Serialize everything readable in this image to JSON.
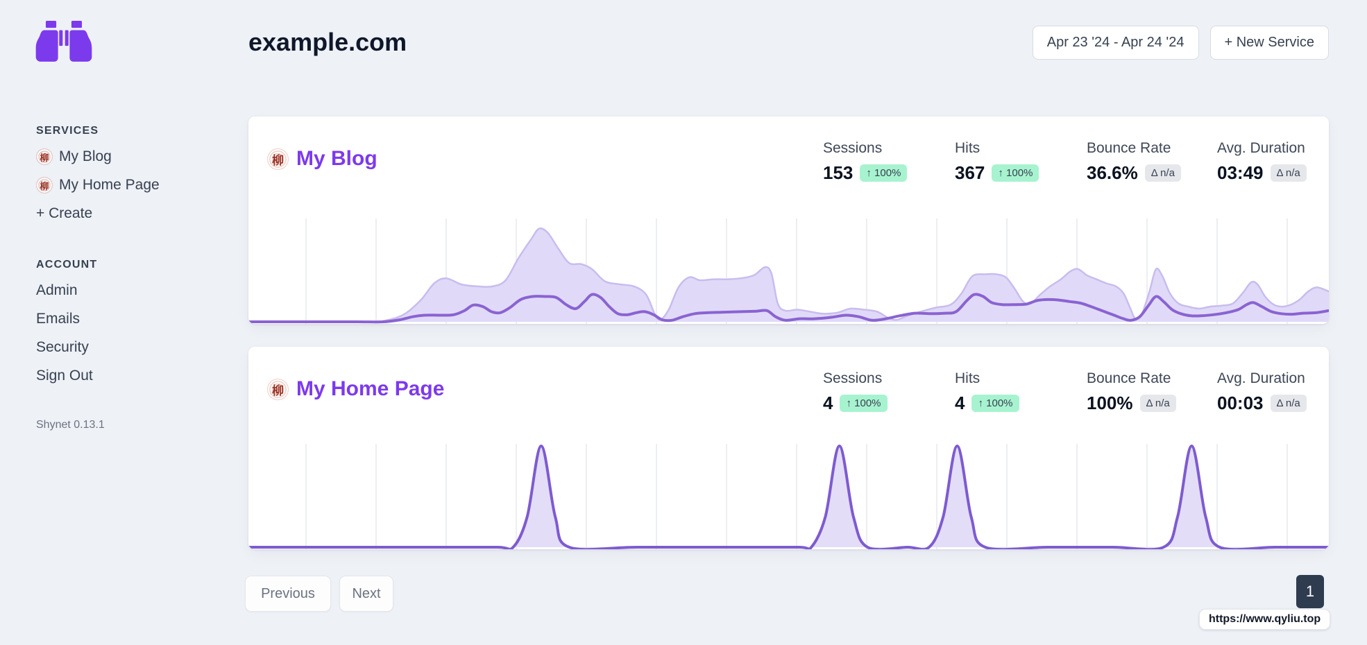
{
  "header": {
    "title": "example.com",
    "date_range_label": "Apr 23 '24 - Apr 24 '24",
    "new_service_label": "+ New Service"
  },
  "sidebar": {
    "services_heading": "SERVICES",
    "services": [
      {
        "label": "My Blog",
        "favicon_glyph": "柳"
      },
      {
        "label": "My Home Page",
        "favicon_glyph": "柳"
      }
    ],
    "create_label": "+ Create",
    "account_heading": "ACCOUNT",
    "account": [
      {
        "label": "Admin"
      },
      {
        "label": "Emails"
      },
      {
        "label": "Security"
      },
      {
        "label": "Sign Out"
      }
    ],
    "version": "Shynet 0.13.1"
  },
  "cards": [
    {
      "title": "My Blog",
      "favicon_glyph": "柳",
      "stats": [
        {
          "label": "Sessions",
          "value": "153",
          "badge": "↑ 100%",
          "badge_type": "green"
        },
        {
          "label": "Hits",
          "value": "367",
          "badge": "↑ 100%",
          "badge_type": "green"
        },
        {
          "label": "Bounce Rate",
          "value": "36.6%",
          "badge": "Δ n/a",
          "badge_type": "gray"
        },
        {
          "label": "Avg. Duration",
          "value": "03:49",
          "badge": "Δ n/a",
          "badge_type": "gray"
        }
      ]
    },
    {
      "title": "My Home Page",
      "favicon_glyph": "柳",
      "stats": [
        {
          "label": "Sessions",
          "value": "4",
          "badge": "↑ 100%",
          "badge_type": "green"
        },
        {
          "label": "Hits",
          "value": "4",
          "badge": "↑ 100%",
          "badge_type": "green"
        },
        {
          "label": "Bounce Rate",
          "value": "100%",
          "badge": "Δ n/a",
          "badge_type": "gray"
        },
        {
          "label": "Avg. Duration",
          "value": "00:03",
          "badge": "Δ n/a",
          "badge_type": "gray"
        }
      ]
    }
  ],
  "pagination": {
    "previous_label": "Previous",
    "next_label": "Next",
    "current_page": "1"
  },
  "status_bar": {
    "link_preview": "https://www.qyliu.top"
  },
  "colors": {
    "accent_purple": "#7c3aed",
    "line_purple": "#8a63d2",
    "area_fill": "#e0daf8",
    "area_stroke": "#c9bcee",
    "spike_fill": "#e3ddf8",
    "badge_green_bg": "#a7f3d0",
    "badge_gray_bg": "#e5e7eb",
    "page_bg": "#eef1f6",
    "page_number_bg": "#2f3b4f",
    "grid_line": "#e7e9ee"
  },
  "chart_data": [
    {
      "type": "area",
      "title": "My Blog traffic over Apr 23 '24 - Apr 24 '24",
      "x_axis": "time (no tick labels shown)",
      "y_axis": "unlabeled (values are height fractions 0-1 of plot area)",
      "gridlines": {
        "orientation": "vertical",
        "count": 15,
        "color": "#e7e9ee"
      },
      "legend": "none",
      "series": [
        {
          "name": "Hits",
          "total": 367,
          "stroke": "#c9bcee",
          "fill": "#e0daf8",
          "width": 2.5,
          "points": [
            [
              0,
              0
            ],
            [
              0.04,
              0
            ],
            [
              0.08,
              0
            ],
            [
              0.115,
              0
            ],
            [
              0.13,
              0.02
            ],
            [
              0.145,
              0.08
            ],
            [
              0.16,
              0.22
            ],
            [
              0.172,
              0.38
            ],
            [
              0.183,
              0.43
            ],
            [
              0.197,
              0.37
            ],
            [
              0.212,
              0.35
            ],
            [
              0.226,
              0.35
            ],
            [
              0.238,
              0.41
            ],
            [
              0.25,
              0.63
            ],
            [
              0.262,
              0.82
            ],
            [
              0.269,
              0.92
            ],
            [
              0.277,
              0.88
            ],
            [
              0.287,
              0.72
            ],
            [
              0.297,
              0.58
            ],
            [
              0.308,
              0.57
            ],
            [
              0.318,
              0.52
            ],
            [
              0.33,
              0.4
            ],
            [
              0.344,
              0.37
            ],
            [
              0.357,
              0.35
            ],
            [
              0.368,
              0.27
            ],
            [
              0.376,
              0.08
            ],
            [
              0.381,
              0.02
            ],
            [
              0.389,
              0.12
            ],
            [
              0.398,
              0.34
            ],
            [
              0.408,
              0.44
            ],
            [
              0.418,
              0.41
            ],
            [
              0.43,
              0.42
            ],
            [
              0.443,
              0.42
            ],
            [
              0.456,
              0.43
            ],
            [
              0.468,
              0.46
            ],
            [
              0.478,
              0.54
            ],
            [
              0.484,
              0.48
            ],
            [
              0.49,
              0.18
            ],
            [
              0.497,
              0.11
            ],
            [
              0.508,
              0.12
            ],
            [
              0.52,
              0.1
            ],
            [
              0.532,
              0.08
            ],
            [
              0.545,
              0.09
            ],
            [
              0.557,
              0.13
            ],
            [
              0.57,
              0.12
            ],
            [
              0.582,
              0.1
            ],
            [
              0.592,
              0.04
            ],
            [
              0.6,
              0.02
            ],
            [
              0.61,
              0.06
            ],
            [
              0.622,
              0.1
            ],
            [
              0.636,
              0.14
            ],
            [
              0.65,
              0.17
            ],
            [
              0.66,
              0.28
            ],
            [
              0.67,
              0.45
            ],
            [
              0.682,
              0.47
            ],
            [
              0.692,
              0.47
            ],
            [
              0.701,
              0.44
            ],
            [
              0.709,
              0.33
            ],
            [
              0.717,
              0.2
            ],
            [
              0.724,
              0.18
            ],
            [
              0.733,
              0.27
            ],
            [
              0.742,
              0.35
            ],
            [
              0.752,
              0.42
            ],
            [
              0.761,
              0.5
            ],
            [
              0.768,
              0.52
            ],
            [
              0.776,
              0.46
            ],
            [
              0.785,
              0.42
            ],
            [
              0.794,
              0.38
            ],
            [
              0.803,
              0.35
            ],
            [
              0.81,
              0.28
            ],
            [
              0.816,
              0.14
            ],
            [
              0.821,
              0.03
            ],
            [
              0.827,
              0.08
            ],
            [
              0.834,
              0.3
            ],
            [
              0.84,
              0.52
            ],
            [
              0.846,
              0.45
            ],
            [
              0.853,
              0.28
            ],
            [
              0.861,
              0.18
            ],
            [
              0.87,
              0.15
            ],
            [
              0.88,
              0.13
            ],
            [
              0.89,
              0.15
            ],
            [
              0.901,
              0.16
            ],
            [
              0.911,
              0.18
            ],
            [
              0.92,
              0.28
            ],
            [
              0.928,
              0.39
            ],
            [
              0.934,
              0.37
            ],
            [
              0.941,
              0.25
            ],
            [
              0.949,
              0.17
            ],
            [
              0.957,
              0.15
            ],
            [
              0.965,
              0.17
            ],
            [
              0.973,
              0.22
            ],
            [
              0.981,
              0.3
            ],
            [
              0.989,
              0.34
            ],
            [
              1,
              0.3
            ]
          ]
        },
        {
          "name": "Sessions",
          "total": 153,
          "stroke": "#8a63d2",
          "fill": null,
          "width": 4,
          "points": [
            [
              0,
              0
            ],
            [
              0.05,
              0
            ],
            [
              0.1,
              0
            ],
            [
              0.125,
              0
            ],
            [
              0.14,
              0.02
            ],
            [
              0.152,
              0.05
            ],
            [
              0.163,
              0.065
            ],
            [
              0.177,
              0.065
            ],
            [
              0.19,
              0.07
            ],
            [
              0.2,
              0.11
            ],
            [
              0.208,
              0.165
            ],
            [
              0.217,
              0.15
            ],
            [
              0.225,
              0.1
            ],
            [
              0.233,
              0.09
            ],
            [
              0.242,
              0.14
            ],
            [
              0.252,
              0.22
            ],
            [
              0.263,
              0.25
            ],
            [
              0.275,
              0.25
            ],
            [
              0.285,
              0.24
            ],
            [
              0.294,
              0.17
            ],
            [
              0.303,
              0.13
            ],
            [
              0.311,
              0.2
            ],
            [
              0.318,
              0.27
            ],
            [
              0.326,
              0.24
            ],
            [
              0.334,
              0.15
            ],
            [
              0.342,
              0.08
            ],
            [
              0.351,
              0.07
            ],
            [
              0.359,
              0.09
            ],
            [
              0.367,
              0.1
            ],
            [
              0.375,
              0.07
            ],
            [
              0.383,
              0.02
            ],
            [
              0.392,
              0.015
            ],
            [
              0.402,
              0.05
            ],
            [
              0.413,
              0.08
            ],
            [
              0.425,
              0.09
            ],
            [
              0.44,
              0.095
            ],
            [
              0.456,
              0.1
            ],
            [
              0.47,
              0.105
            ],
            [
              0.48,
              0.11
            ],
            [
              0.488,
              0.05
            ],
            [
              0.497,
              0.015
            ],
            [
              0.51,
              0.03
            ],
            [
              0.524,
              0.03
            ],
            [
              0.54,
              0.045
            ],
            [
              0.553,
              0.065
            ],
            [
              0.565,
              0.05
            ],
            [
              0.577,
              0.015
            ],
            [
              0.59,
              0.03
            ],
            [
              0.603,
              0.06
            ],
            [
              0.617,
              0.085
            ],
            [
              0.631,
              0.08
            ],
            [
              0.645,
              0.085
            ],
            [
              0.655,
              0.1
            ],
            [
              0.665,
              0.21
            ],
            [
              0.672,
              0.27
            ],
            [
              0.68,
              0.25
            ],
            [
              0.688,
              0.19
            ],
            [
              0.698,
              0.17
            ],
            [
              0.71,
              0.17
            ],
            [
              0.72,
              0.175
            ],
            [
              0.73,
              0.21
            ],
            [
              0.74,
              0.22
            ],
            [
              0.75,
              0.215
            ],
            [
              0.76,
              0.2
            ],
            [
              0.77,
              0.185
            ],
            [
              0.78,
              0.15
            ],
            [
              0.79,
              0.11
            ],
            [
              0.8,
              0.07
            ],
            [
              0.81,
              0.03
            ],
            [
              0.817,
              0.015
            ],
            [
              0.825,
              0.05
            ],
            [
              0.833,
              0.16
            ],
            [
              0.84,
              0.25
            ],
            [
              0.847,
              0.2
            ],
            [
              0.855,
              0.12
            ],
            [
              0.863,
              0.08
            ],
            [
              0.872,
              0.06
            ],
            [
              0.882,
              0.06
            ],
            [
              0.893,
              0.07
            ],
            [
              0.905,
              0.09
            ],
            [
              0.916,
              0.12
            ],
            [
              0.924,
              0.17
            ],
            [
              0.93,
              0.19
            ],
            [
              0.938,
              0.15
            ],
            [
              0.947,
              0.1
            ],
            [
              0.956,
              0.08
            ],
            [
              0.966,
              0.075
            ],
            [
              0.976,
              0.085
            ],
            [
              0.988,
              0.09
            ],
            [
              1,
              0.11
            ]
          ]
        }
      ]
    },
    {
      "type": "area",
      "title": "My Home Page traffic over Apr 23 '24 - Apr 24 '24",
      "x_axis": "time (no tick labels shown)",
      "y_axis": "unlabeled (values are height fractions 0-1 of plot area)",
      "gridlines": {
        "orientation": "vertical",
        "count": 15,
        "color": "#e7e9ee"
      },
      "legend": "none",
      "series": [
        {
          "name": "Sessions / Hits",
          "total": 4,
          "stroke": "#7e5bd0",
          "fill": "#e3ddf8",
          "width": 4,
          "points": [
            [
              0,
              0
            ],
            [
              0.08,
              0
            ],
            [
              0.16,
              0
            ],
            [
              0.23,
              0
            ],
            [
              0.245,
              0
            ],
            [
              0.258,
              0.3
            ],
            [
              0.271,
              1
            ],
            [
              0.284,
              0.3
            ],
            [
              0.297,
              0
            ],
            [
              0.36,
              0
            ],
            [
              0.45,
              0
            ],
            [
              0.51,
              0
            ],
            [
              0.521,
              0
            ],
            [
              0.534,
              0.3
            ],
            [
              0.547,
              1
            ],
            [
              0.56,
              0.3
            ],
            [
              0.573,
              0
            ],
            [
              0.61,
              0
            ],
            [
              0.63,
              0
            ],
            [
              0.643,
              0.3
            ],
            [
              0.656,
              1
            ],
            [
              0.669,
              0.3
            ],
            [
              0.682,
              0
            ],
            [
              0.74,
              0
            ],
            [
              0.8,
              0
            ],
            [
              0.847,
              0
            ],
            [
              0.86,
              0.3
            ],
            [
              0.873,
              1
            ],
            [
              0.886,
              0.3
            ],
            [
              0.899,
              0
            ],
            [
              0.95,
              0
            ],
            [
              1,
              0
            ]
          ]
        }
      ]
    }
  ]
}
